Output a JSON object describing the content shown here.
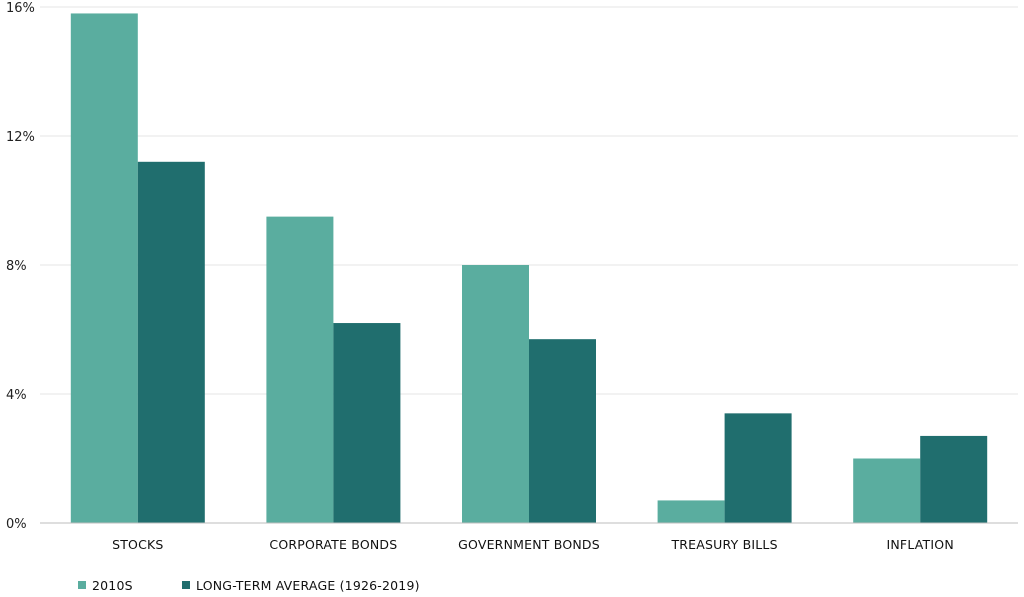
{
  "chart_data": {
    "type": "bar",
    "categories": [
      "STOCKS",
      "CORPORATE    BONDS",
      "GOVERNMENT BONDS",
      "TREASURY BILLS",
      "INFLATION"
    ],
    "series": [
      {
        "name": "2010S",
        "values": [
          15.8,
          9.5,
          8.0,
          0.7,
          2.0
        ],
        "color": "#5aad9f"
      },
      {
        "name": "LONG-TERM AVERAGE (1926-2019)",
        "values": [
          11.2,
          6.2,
          5.7,
          3.4,
          2.7
        ],
        "color": "#206e6e"
      }
    ],
    "yticks": [
      0,
      4,
      8,
      12,
      16
    ],
    "ytick_labels": [
      "0%",
      "4%",
      "8%",
      "12%",
      "16%"
    ],
    "ylim": [
      0,
      16
    ],
    "grid": true,
    "legend_position": "bottom-left"
  }
}
